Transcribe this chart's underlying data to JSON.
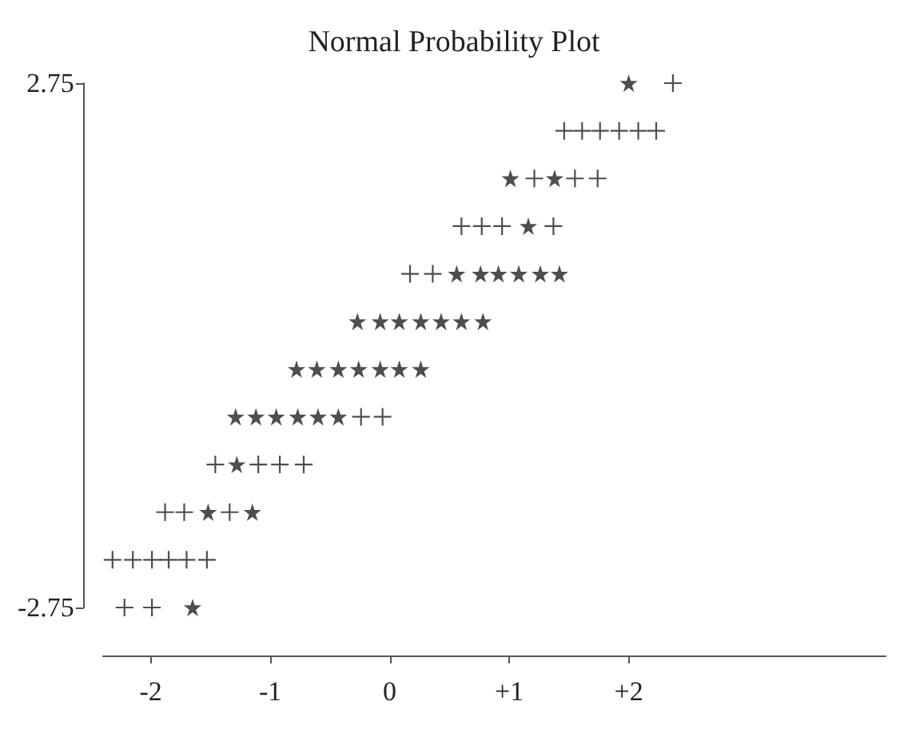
{
  "chart_data": {
    "type": "scatter",
    "title": "Normal Probability Plot",
    "xlim": [
      -2.4,
      4.15
    ],
    "xticks": [
      -2,
      -1,
      0,
      {
        "value": 1,
        "label": "+1"
      },
      {
        "value": 2,
        "label": "+2"
      }
    ],
    "ylim": [
      -2.75,
      2.75
    ],
    "yticks": [
      -2.75,
      2.75
    ],
    "series": [
      {
        "color": "#222222",
        "marker": "star",
        "x": [
          2.0,
          1.01,
          1.38,
          1.16,
          0.56,
          0.76,
          0.91,
          1.08,
          1.26,
          1.42,
          -0.27,
          -0.08,
          0.08,
          0.26,
          0.43,
          0.6,
          0.78,
          -0.78,
          -0.61,
          -0.43,
          -0.26,
          -0.08,
          0.08,
          0.26,
          -1.29,
          -1.12,
          -0.95,
          -0.77,
          -0.6,
          -0.43,
          -1.28,
          -1.52,
          -1.15,
          -1.65
        ],
        "values": [
          2.75,
          1.75,
          1.75,
          1.25,
          0.75,
          0.75,
          0.75,
          0.75,
          0.75,
          0.75,
          0.25,
          0.25,
          0.25,
          0.25,
          0.25,
          0.25,
          0.25,
          -0.25,
          -0.25,
          -0.25,
          -0.25,
          -0.25,
          -0.25,
          -0.25,
          -0.75,
          -0.75,
          -0.75,
          -0.75,
          -0.75,
          -0.75,
          -1.25,
          -1.75,
          -1.75,
          -2.75
        ]
      },
      {
        "color": "#222222",
        "marker": "cross",
        "x": [
          2.37,
          1.46,
          1.61,
          1.76,
          1.92,
          2.08,
          2.23,
          1.21,
          1.55,
          1.74,
          0.6,
          0.77,
          0.94,
          1.37,
          0.17,
          0.36,
          -0.24,
          -0.06,
          -1.46,
          -1.1,
          -0.92,
          -0.72,
          -1.88,
          -1.72,
          -1.34,
          -2.32,
          -2.15,
          -1.99,
          -1.85,
          -1.7,
          -1.53,
          -2.22,
          -1.99
        ],
        "values": [
          2.75,
          2.25,
          2.25,
          2.25,
          2.25,
          2.25,
          2.25,
          1.75,
          1.75,
          1.75,
          1.25,
          1.25,
          1.25,
          1.25,
          0.75,
          0.75,
          -0.75,
          -0.75,
          -1.25,
          -1.25,
          -1.25,
          -1.25,
          -1.75,
          -1.75,
          -1.75,
          -2.25,
          -2.25,
          -2.25,
          -2.25,
          -2.25,
          -2.25,
          -2.75,
          -2.75
        ]
      }
    ]
  }
}
